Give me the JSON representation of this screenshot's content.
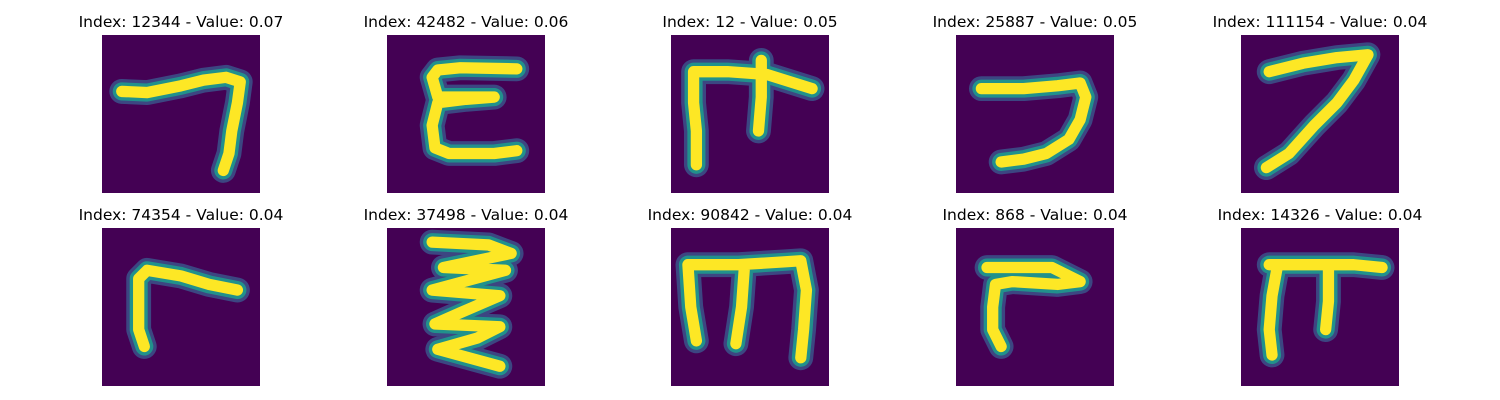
{
  "colors": {
    "background": "#440154",
    "stroke_core": "#fde725",
    "stroke_mid": "#21918c",
    "stroke_edge": "#3b528b"
  },
  "panels": [
    {
      "title": "Index: 12344 - Value: 0.07",
      "glyph": "hook-seven"
    },
    {
      "title": "Index: 42482 - Value: 0.06",
      "glyph": "bracket-c"
    },
    {
      "title": "Index: 12 - Value: 0.05",
      "glyph": "pi-cross"
    },
    {
      "title": "Index: 25887 - Value: 0.05",
      "glyph": "reverse-c"
    },
    {
      "title": "Index: 111154 - Value: 0.04",
      "glyph": "seven"
    },
    {
      "title": "Index: 74354 - Value: 0.04",
      "glyph": "gamma"
    },
    {
      "title": "Index: 37498 - Value: 0.04",
      "glyph": "zigzag"
    },
    {
      "title": "Index: 90842 - Value: 0.04",
      "glyph": "m-shape"
    },
    {
      "title": "Index: 868 - Value: 0.04",
      "glyph": "gamma-flag"
    },
    {
      "title": "Index: 14326 - Value: 0.04",
      "glyph": "pi"
    }
  ]
}
